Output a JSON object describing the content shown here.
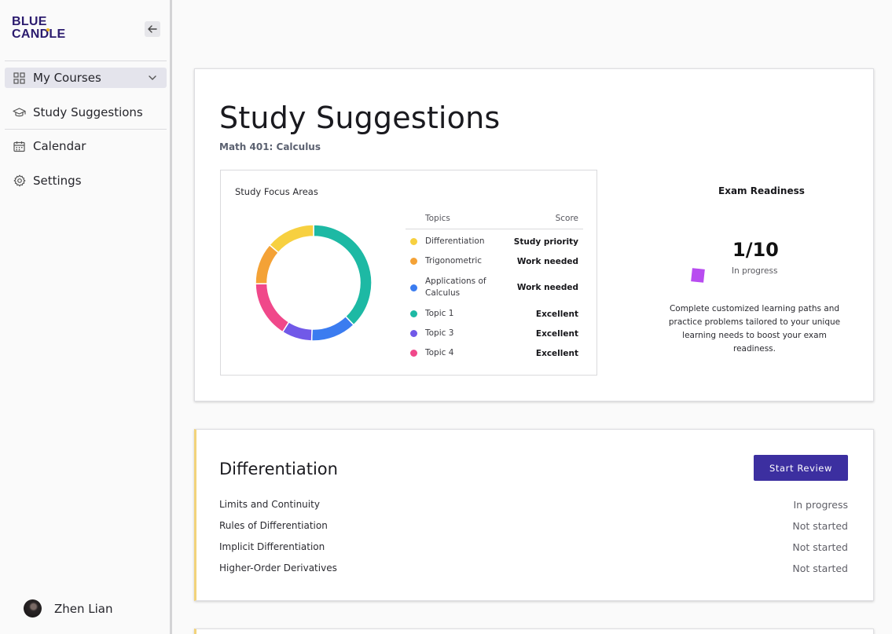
{
  "sidebar": {
    "logo_line1": "BLUE",
    "logo_line2": "CANDLE",
    "items": [
      {
        "label": "My Courses",
        "icon": "grid-icon"
      },
      {
        "label": "Study Suggestions",
        "icon": "graduation-cap-icon"
      },
      {
        "label": "Calendar",
        "icon": "calendar-icon"
      },
      {
        "label": "Settings",
        "icon": "gear-icon"
      }
    ],
    "user_name": "Zhen Lian"
  },
  "header": {
    "title": "Study Suggestions",
    "course": "Math 401: Calculus"
  },
  "focus_areas": {
    "title": "Study Focus Areas",
    "col_topics": "Topics",
    "col_score": "Score",
    "rows": [
      {
        "topic": "Differentiation",
        "score": "Study priority",
        "color": "#f7d040"
      },
      {
        "topic": "Trigonometric",
        "score": "Work needed",
        "color": "#f4a236"
      },
      {
        "topic": "Applications of Calculus",
        "score": "Work needed",
        "color": "#3b7cf0"
      },
      {
        "topic": "Topic 1",
        "score": "Excellent",
        "color": "#1db9a4"
      },
      {
        "topic": "Topic 3",
        "score": "Excellent",
        "color": "#7159e8"
      },
      {
        "topic": "Topic 4",
        "score": "Excellent",
        "color": "#f0488a"
      }
    ]
  },
  "chart_data": {
    "type": "pie",
    "title": "Study Focus Areas",
    "categories": [
      "Topic 1",
      "Applications of Calculus",
      "Topic 3",
      "Topic 4",
      "Trigonometric",
      "Differentiation"
    ],
    "values": [
      36,
      12,
      8,
      15,
      11,
      13
    ],
    "colors": [
      "#1db9a4",
      "#3b7cf0",
      "#7159e8",
      "#f0488a",
      "#f4a236",
      "#f7d040"
    ]
  },
  "readiness": {
    "title": "Exam Readiness",
    "score": "1/10",
    "status": "In progress",
    "description": "Complete customized learning paths and practice problems tailored to your unique learning needs to boost your exam readiness.",
    "accent": "#b84cf0"
  },
  "review": {
    "title": "Differentiation",
    "button_label": "Start Review",
    "items": [
      {
        "name": "Limits and Continuity",
        "status": "In progress"
      },
      {
        "name": "Rules of Differentiation",
        "status": "Not started"
      },
      {
        "name": "Implicit Differentiation",
        "status": "Not started"
      },
      {
        "name": "Higher-Order Derivatives",
        "status": "Not started"
      }
    ]
  }
}
